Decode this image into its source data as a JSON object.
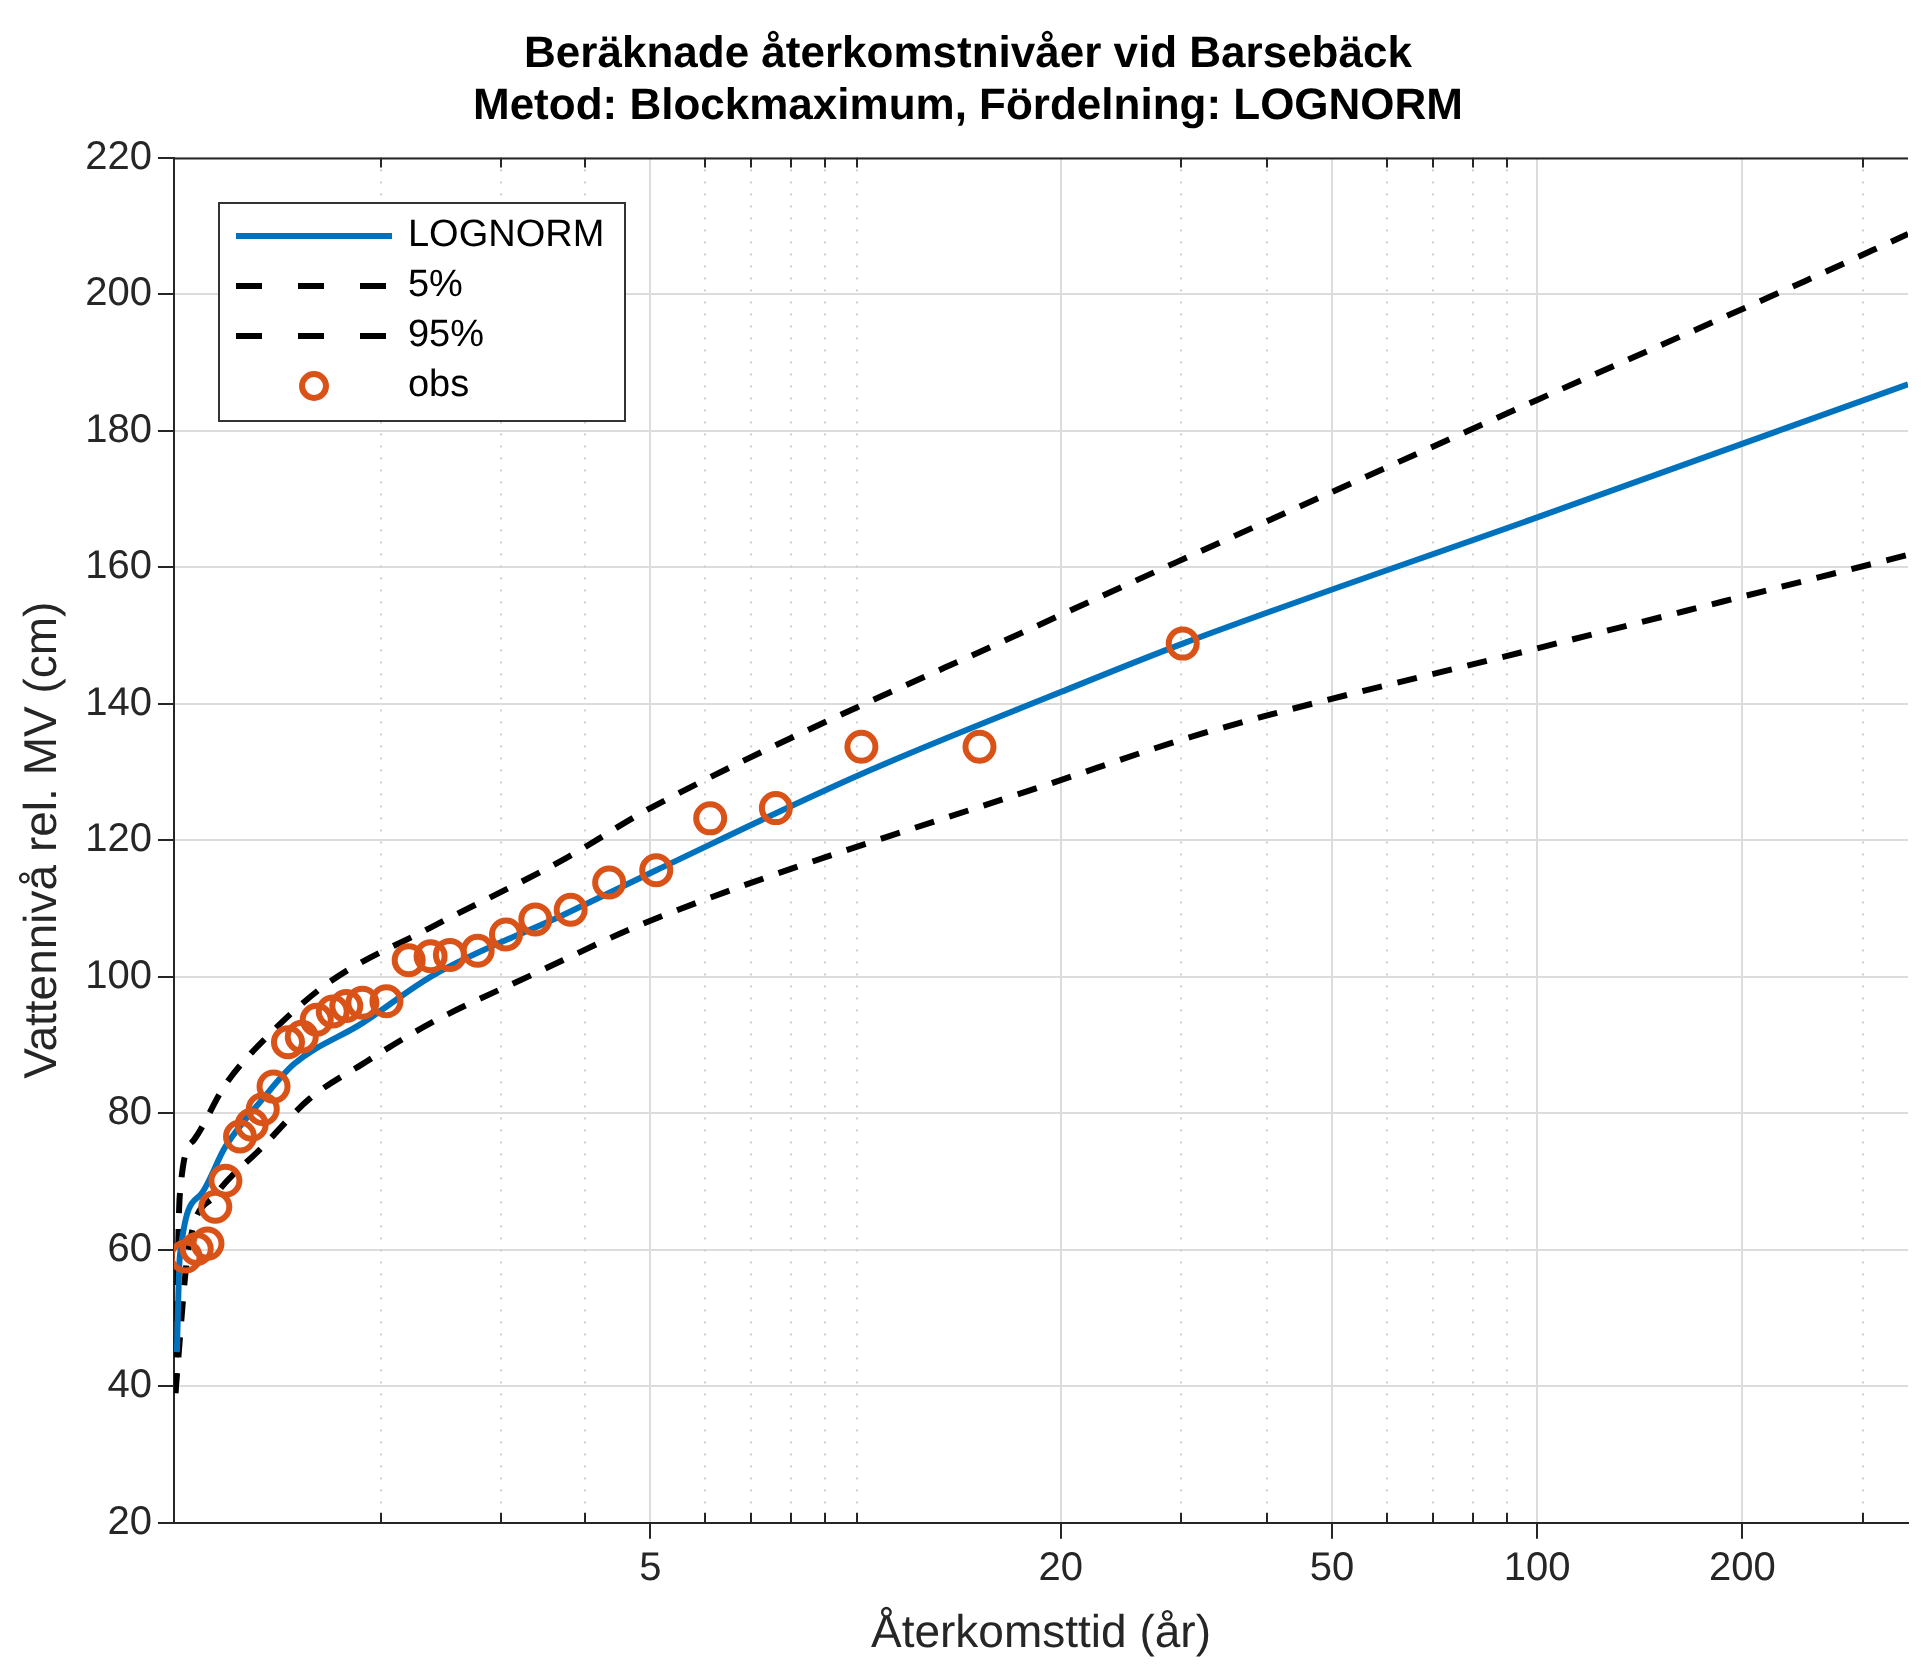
{
  "chart_data": {
    "type": "line",
    "title": "Beräknade återkomstnivåer vid Barsebäck\nMetod: Blockmaximum, Fördelning: LOGNORM",
    "xlabel": "Återkomsttid (år)",
    "ylabel": "Vattennivå rel. MV (cm)",
    "log": "x",
    "xlim": [
      1,
      350
    ],
    "xticks": [
      5,
      20,
      50,
      100,
      200
    ],
    "ylim": [
      20,
      220
    ],
    "yticks": [
      20,
      40,
      60,
      80,
      100,
      120,
      140,
      160,
      180,
      200,
      220
    ],
    "grid": true,
    "legend": "top left",
    "marker": "none",
    "series": [
      {
        "name": "LOGNORM",
        "color": "#0072bd",
        "line_style": "solid",
        "x": [
          1.01,
          1.02,
          1.095,
          1.19,
          1.35,
          1.5,
          1.89,
          2.4,
          3.75,
          5.1,
          10.2,
          20,
          30.2,
          100,
          350
        ],
        "values": [
          45,
          59,
          68.1,
          75.1,
          82.1,
          87.2,
          93.2,
          100.2,
          109.2,
          115.6,
          129.7,
          141.7,
          148.8,
          167.3,
          186.8
        ]
      },
      {
        "name": "5%",
        "color": "#000000",
        "line_style": "dashed",
        "x": [
          1.005,
          1.05,
          1.15,
          1.35,
          1.58,
          1.89,
          2.38,
          3.34,
          5,
          20,
          32.2,
          100,
          350
        ],
        "values": [
          39,
          60,
          68,
          75.1,
          82.1,
          87.2,
          93.2,
          100.2,
          108.2,
          128.8,
          135.6,
          148.1,
          161.8
        ]
      },
      {
        "name": "95%",
        "color": "#000000",
        "line_style": "dashed",
        "x": [
          1.005,
          1.02,
          1.07,
          1.19,
          1.37,
          1.69,
          2.38,
          3.75,
          5,
          20,
          32.2,
          100,
          247,
          350
        ],
        "values": [
          39,
          68,
          76.1,
          84.2,
          91.2,
          99.2,
          107.2,
          117.3,
          124.7,
          153,
          162.4,
          184.5,
          201.9,
          208.8
        ]
      },
      {
        "name": "obs",
        "color": "#d95319",
        "type": "scatter",
        "marker": "circle",
        "x": [
          1.04,
          1.08,
          1.12,
          1.15,
          1.19,
          1.25,
          1.3,
          1.35,
          1.4,
          1.47,
          1.54,
          1.62,
          1.71,
          1.79,
          1.89,
          2.05,
          2.21,
          2.38,
          2.54,
          2.79,
          3.07,
          3.39,
          3.82,
          4.35,
          5.1,
          6.12,
          7.64,
          10.2,
          15.2,
          30.2
        ],
        "values": [
          59,
          60.1,
          60.9,
          66.3,
          70.1,
          76.6,
          78.3,
          80.6,
          83.9,
          90.4,
          91.2,
          93.7,
          94.9,
          95.7,
          96.2,
          96.4,
          102.4,
          103,
          103.2,
          103.8,
          106.2,
          108.4,
          109.8,
          113.8,
          115.6,
          123.2,
          124.7,
          133.7,
          133.7,
          148.8
        ]
      }
    ]
  }
}
